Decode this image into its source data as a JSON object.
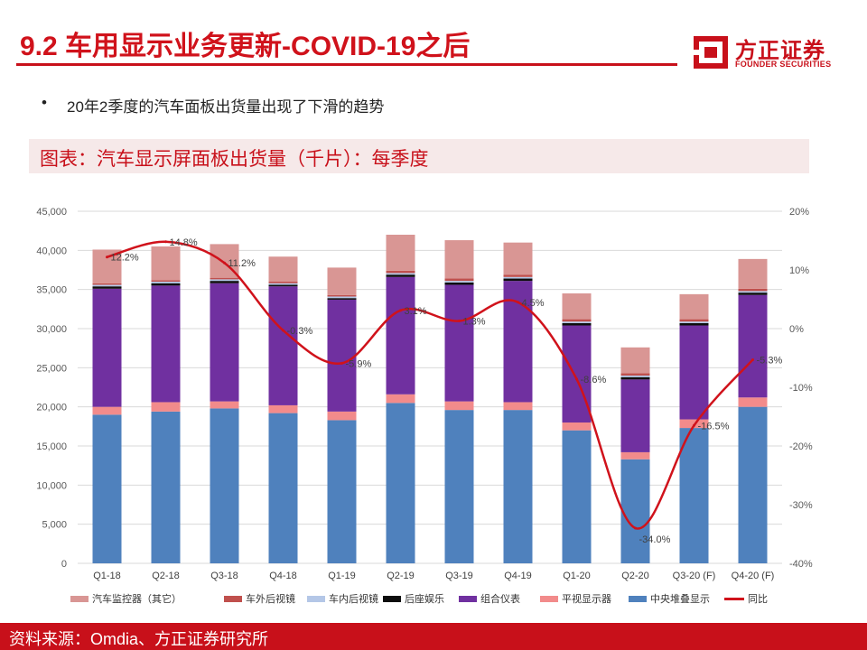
{
  "header": {
    "title": "9.2 车用显示业务更新-COVID-19之后",
    "logo_cn": "方正证券",
    "logo_en": "FOUNDER SECURITIES"
  },
  "bullet": {
    "marker": "•",
    "text": "20年2季度的汽车面板出货量出现了下滑的趋势"
  },
  "chart_heading": "图表：汽车显示屏面板出货量（千片）：每季度",
  "footer": {
    "source": "资料来源：Omdia、方正证券研究所"
  },
  "colors": {
    "brand_red": "#c8101a",
    "line_red": "#d0121b",
    "s_center": "#4f81bd",
    "s_hud": "#f28b8b",
    "s_cluster": "#7030a0",
    "s_rse": "#0d0d0d",
    "s_inner_mirror": "#b4c7e7",
    "s_outer_mirror": "#c0504d",
    "s_monitor": "#d99694"
  },
  "chart_data": {
    "type": "bar",
    "stacked": true,
    "categories": [
      "Q1-18",
      "Q2-18",
      "Q3-18",
      "Q4-18",
      "Q1-19",
      "Q2-19",
      "Q3-19",
      "Q4-19",
      "Q1-20",
      "Q2-20",
      "Q3-20 (F)",
      "Q4-20 (F)"
    ],
    "y_left": {
      "min": 0,
      "max": 45000,
      "step": 5000,
      "tick_labels": [
        "0",
        "5,000",
        "10,000",
        "15,000",
        "20,000",
        "25,000",
        "30,000",
        "35,000",
        "40,000",
        "45,000"
      ]
    },
    "y_right": {
      "min": -40,
      "max": 20,
      "step": 10,
      "tick_labels": [
        "-40%",
        "-30%",
        "-20%",
        "-10%",
        "0%",
        "10%",
        "20%"
      ]
    },
    "series": [
      {
        "name": "中央堆叠显示",
        "color_key": "s_center",
        "values": [
          19000,
          19400,
          19800,
          19200,
          18300,
          20500,
          19600,
          19600,
          17000,
          13300,
          17300,
          20000
        ]
      },
      {
        "name": "平视显示器",
        "color_key": "s_hud",
        "values": [
          1000,
          1200,
          900,
          1000,
          1100,
          1100,
          1100,
          1000,
          1000,
          900,
          1100,
          1200
        ]
      },
      {
        "name": "组合仪表",
        "color_key": "s_cluster",
        "values": [
          15100,
          14900,
          15100,
          15200,
          14300,
          15000,
          14900,
          15500,
          12400,
          9300,
          12000,
          13100
        ]
      },
      {
        "name": "后座娱乐",
        "color_key": "s_rse",
        "values": [
          300,
          300,
          300,
          200,
          200,
          300,
          300,
          300,
          300,
          300,
          300,
          300
        ]
      },
      {
        "name": "车内后视镜",
        "color_key": "s_inner_mirror",
        "values": [
          200,
          200,
          200,
          200,
          200,
          200,
          200,
          200,
          200,
          200,
          200,
          200
        ]
      },
      {
        "name": "车外后视镜",
        "color_key": "s_outer_mirror",
        "values": [
          200,
          200,
          200,
          200,
          200,
          300,
          300,
          300,
          300,
          300,
          300,
          300
        ]
      },
      {
        "name": "汽车监控器（其它）",
        "color_key": "s_monitor",
        "values": [
          4300,
          4300,
          4300,
          3200,
          3500,
          4600,
          4900,
          4100,
          3300,
          3300,
          3200,
          3800
        ]
      }
    ],
    "line_series": {
      "name": "同比",
      "axis": "right",
      "values": [
        12.2,
        14.8,
        11.2,
        -0.3,
        -5.9,
        3.1,
        1.3,
        4.5,
        -8.6,
        -34.0,
        -16.5,
        -5.3
      ],
      "labels": [
        "12.2%",
        "14.8%",
        "11.2%",
        "-0.3%",
        "-5.9%",
        "3.1%",
        "1.3%",
        "4.5%",
        "-8.6%",
        "-34.0%",
        "-16.5%",
        "-5.3%"
      ]
    },
    "legend_order": [
      "汽车监控器（其它）",
      "车外后视镜",
      "车内后视镜",
      "后座娱乐",
      "组合仪表",
      "平视显示器",
      "中央堆叠显示",
      "同比"
    ]
  }
}
